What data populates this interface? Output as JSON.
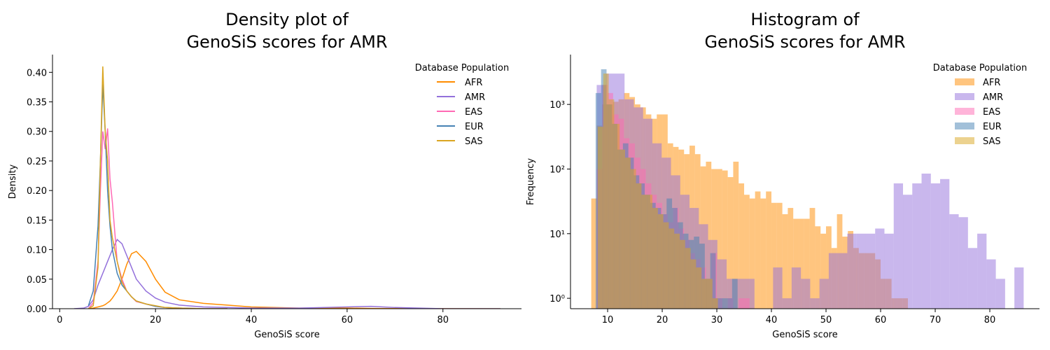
{
  "chart_data": [
    {
      "type": "line",
      "title": [
        "Density plot of",
        "GenoSiS scores for AMR"
      ],
      "xlabel": "GenoSiS score",
      "ylabel": "Density",
      "xlim": [
        -1.5,
        96.4
      ],
      "ylim": [
        0,
        0.43
      ],
      "xticks": [
        0,
        20,
        40,
        60,
        80
      ],
      "yticks": [
        {
          "value": 0,
          "label": "0.00"
        },
        0.05,
        {
          "value": 0.1,
          "label": "0.10"
        },
        0.15,
        {
          "value": 0.2,
          "label": "0.20"
        },
        0.25,
        {
          "value": 0.3,
          "label": "0.30"
        },
        0.35,
        {
          "value": 0.4,
          "label": "0.40"
        }
      ],
      "legend": "upper right",
      "legend_title": "Database Population",
      "x": [
        3,
        5,
        6,
        7,
        8,
        8.5,
        9,
        9.5,
        10,
        10.5,
        11,
        12,
        13,
        14,
        15,
        16,
        18,
        20,
        22,
        25,
        30,
        35,
        40,
        50,
        60,
        65,
        70,
        80,
        92
      ],
      "series": [
        {
          "name": "AFR",
          "color": "#ff8c00",
          "values": [
            null,
            null,
            0,
            0.001,
            0.003,
            0.004,
            0.005,
            0.007,
            0.01,
            0.013,
            0.018,
            0.03,
            0.05,
            0.075,
            0.093,
            0.097,
            0.08,
            0.05,
            0.028,
            0.015,
            0.009,
            0.006,
            0.003,
            0.001,
            0.001,
            0.0005,
            0.0003,
            0.0001,
            0
          ]
        },
        {
          "name": "AMR",
          "color": "#9370db",
          "values": [
            0,
            0.001,
            0.004,
            0.015,
            0.04,
            0.05,
            0.06,
            0.07,
            0.08,
            0.09,
            0.1,
            0.117,
            0.11,
            0.09,
            0.07,
            0.05,
            0.03,
            0.018,
            0.011,
            0.006,
            0.003,
            0.002,
            0.001,
            0.001,
            0.003,
            0.004,
            0.002,
            0,
            0
          ]
        },
        {
          "name": "EAS",
          "color": "#ff69b4",
          "values": [
            null,
            null,
            0,
            0.01,
            0.08,
            0.2,
            0.3,
            0.27,
            0.305,
            0.22,
            0.18,
            0.08,
            0.05,
            0.03,
            0.02,
            0.012,
            0.008,
            0.004,
            0.002,
            0.001,
            0,
            0,
            null,
            null,
            null,
            null,
            null,
            null,
            null
          ]
        },
        {
          "name": "EUR",
          "color": "#4682b4",
          "values": [
            null,
            null,
            0.005,
            0.03,
            0.14,
            0.25,
            0.38,
            0.3,
            0.2,
            0.14,
            0.1,
            0.06,
            0.04,
            0.03,
            0.02,
            0.013,
            0.008,
            0.004,
            0.002,
            0.001,
            0,
            0,
            null,
            null,
            null,
            null,
            null,
            null,
            null
          ]
        },
        {
          "name": "SAS",
          "color": "#daa520",
          "values": [
            null,
            null,
            0,
            0.005,
            0.07,
            0.25,
            0.41,
            0.3,
            0.25,
            0.15,
            0.12,
            0.08,
            0.045,
            0.03,
            0.02,
            0.013,
            0.008,
            0.005,
            0.002,
            0.001,
            0,
            0,
            null,
            null,
            null,
            null,
            null,
            null,
            null
          ]
        }
      ]
    },
    {
      "type": "histogram",
      "title": [
        "Histogram of",
        "GenoSiS scores for AMR"
      ],
      "xlabel": "GenoSiS score",
      "ylabel": "Frequency",
      "yscale": "log",
      "alpha": 0.5,
      "xlim": [
        3.2,
        89.1
      ],
      "ylim": [
        0.69,
        5900
      ],
      "xticks": [
        10,
        20,
        30,
        40,
        50,
        60,
        70,
        80
      ],
      "yticks": [
        {
          "value": 1,
          "label": "10⁰"
        },
        {
          "value": 10,
          "label": "10¹"
        },
        {
          "value": 100,
          "label": "10²"
        },
        {
          "value": 1000,
          "label": "10³"
        }
      ],
      "legend": "upper right",
      "legend_title": "Database Population",
      "series": [
        {
          "name": "AFR",
          "color": "#ff8c00",
          "bins": [
            7,
            8,
            9,
            10,
            11,
            12,
            13,
            14,
            15,
            16,
            17,
            18,
            19,
            20,
            21,
            22,
            23,
            24,
            25,
            26,
            27,
            28,
            29,
            30,
            31,
            32,
            33,
            34,
            35,
            36,
            37,
            38,
            39,
            40,
            41,
            42,
            43,
            44,
            45,
            46,
            47,
            48,
            49,
            50,
            51,
            52,
            53,
            54,
            55,
            56,
            57,
            58,
            59,
            60,
            61,
            62,
            63,
            64,
            65
          ],
          "values": [
            35,
            470,
            1000,
            1000,
            1100,
            1200,
            1500,
            1300,
            1000,
            900,
            700,
            600,
            700,
            700,
            250,
            220,
            200,
            170,
            230,
            170,
            110,
            130,
            100,
            100,
            95,
            75,
            130,
            60,
            40,
            35,
            45,
            35,
            45,
            30,
            30,
            20,
            25,
            17,
            17,
            17,
            25,
            13,
            10,
            13,
            6,
            20,
            9,
            11,
            6,
            5,
            5,
            5,
            4,
            2,
            2,
            1,
            1,
            1
          ]
        },
        {
          "name": "AMR",
          "color": "#9370db",
          "bins": [
            8,
            9.7,
            11.4,
            13.1,
            14.8,
            16.5,
            18.2,
            19.9,
            21.6,
            23.3,
            25,
            26.7,
            28.4,
            30.1,
            31.8,
            33.5,
            35.2,
            36.9,
            38.6,
            40.3,
            42,
            43.7,
            45.4,
            47.1,
            48.8,
            50.5,
            52.2,
            53.9,
            55.6,
            57.3,
            59,
            60.7,
            62.4,
            64.1,
            65.8,
            67.5,
            69.2,
            70.9,
            72.6,
            74.3,
            76,
            77.7,
            79.4,
            81.1,
            82.8,
            84.5,
            86.2
          ],
          "values": [
            2000,
            3000,
            3000,
            1200,
            900,
            600,
            250,
            150,
            80,
            40,
            25,
            14,
            8,
            4,
            2,
            2,
            2,
            0,
            0,
            3,
            1,
            3,
            2,
            1,
            2,
            5,
            5,
            10,
            10,
            10,
            12,
            10,
            60,
            40,
            60,
            85,
            60,
            70,
            20,
            18,
            6,
            10,
            4,
            2,
            0,
            3
          ]
        },
        {
          "name": "EAS",
          "color": "#ff69b4",
          "bins": [
            8,
            9,
            10,
            11,
            12,
            13,
            14,
            15,
            16,
            17,
            18,
            19,
            20,
            21,
            22,
            23,
            24,
            25,
            26,
            27,
            28,
            29,
            30,
            31,
            32,
            33,
            34,
            35,
            36
          ],
          "values": [
            100,
            2000,
            1500,
            700,
            600,
            300,
            250,
            150,
            100,
            60,
            40,
            30,
            20,
            15,
            25,
            12,
            8,
            5,
            4,
            3,
            2,
            5,
            1,
            0,
            1,
            0,
            1,
            1
          ]
        },
        {
          "name": "EUR",
          "color": "#4682b4",
          "bins": [
            7.8,
            8.8,
            9.8,
            10.8,
            11.8,
            12.8,
            13.8,
            14.8,
            15.8,
            16.8,
            17.8,
            18.8,
            19.8,
            20.8,
            21.8,
            22.8,
            23.8,
            24.8,
            25.8,
            26.8,
            27.8,
            28.8,
            29.8,
            30.8,
            31.8,
            32.8,
            33.8
          ],
          "values": [
            1500,
            3500,
            1000,
            500,
            200,
            250,
            150,
            80,
            60,
            40,
            30,
            25,
            20,
            35,
            25,
            15,
            10,
            8,
            9,
            7,
            2,
            5,
            1,
            1,
            1,
            2
          ]
        },
        {
          "name": "SAS",
          "color": "#daa520",
          "bins": [
            8.2,
            9.2,
            10.2,
            11.2,
            12.2,
            13.2,
            14.2,
            15.2,
            16.2,
            17.2,
            18.2,
            19.2,
            20.2,
            21.2,
            22.2,
            23.2,
            24.2,
            25.2,
            26.2,
            27.2,
            28.2,
            29.2,
            30.2
          ],
          "values": [
            450,
            3000,
            1200,
            500,
            200,
            150,
            100,
            60,
            40,
            40,
            25,
            20,
            15,
            12,
            10,
            8,
            6,
            4,
            3,
            2,
            2,
            1
          ]
        }
      ]
    }
  ]
}
